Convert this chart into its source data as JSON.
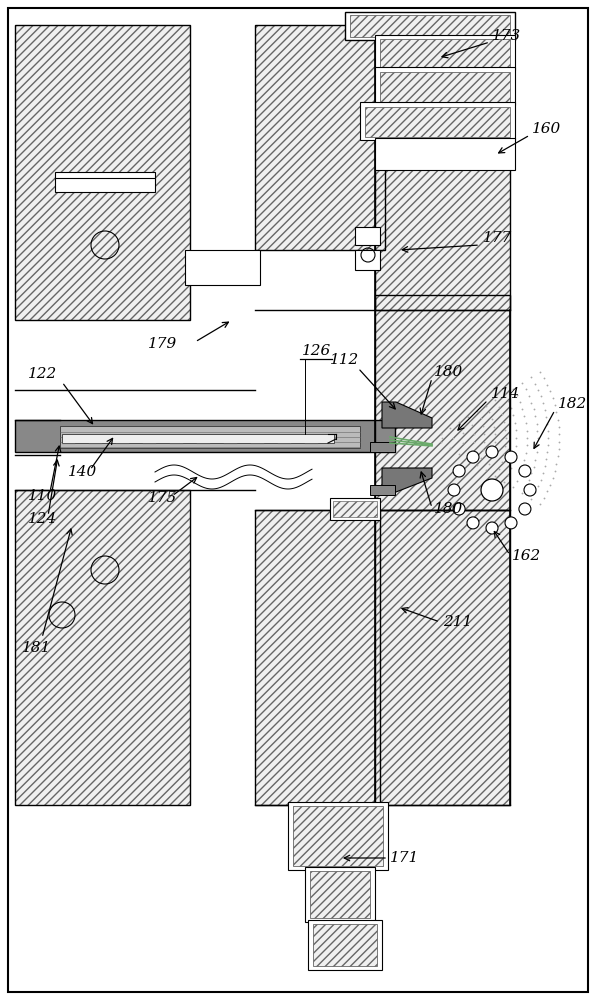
{
  "bg_color": "#ffffff",
  "line_color": "#000000",
  "hatch_fc": "#f0f0f0",
  "hatch_ec": "#666666",
  "gray_fill": "#888888",
  "light_gray": "#bbbbbb",
  "lighter_gray": "#dddddd"
}
